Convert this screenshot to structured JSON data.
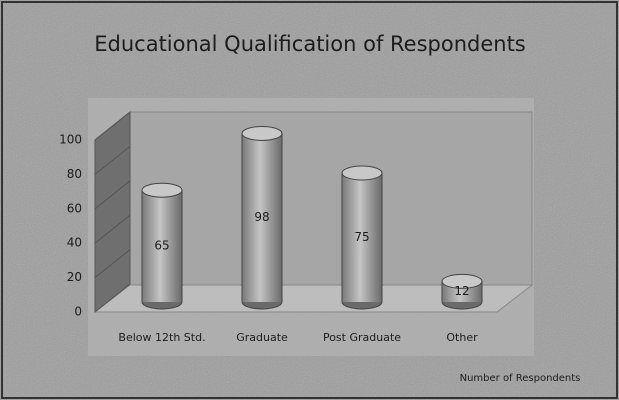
{
  "chart_data": {
    "type": "bar",
    "title": "Educational Qualification of Respondents",
    "categories": [
      "Below 12th Std.",
      "Graduate",
      "Post Graduate",
      "Other"
    ],
    "series": [
      {
        "name": "Number of Respondents",
        "color": "#a9a9a9",
        "values": [
          65,
          98,
          75,
          12
        ]
      }
    ],
    "ylim": [
      0,
      100
    ],
    "yticks": [
      0,
      20,
      40,
      60,
      80,
      100
    ],
    "grid": true,
    "legend": "bottom-right"
  }
}
